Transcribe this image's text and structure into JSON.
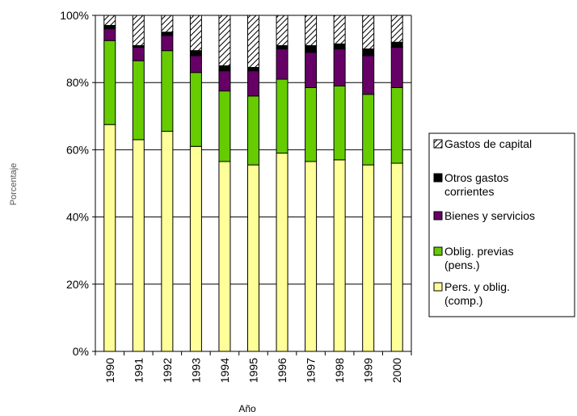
{
  "chart_data": {
    "type": "bar",
    "stacked": true,
    "percent": true,
    "categories": [
      "1990",
      "1991",
      "1992",
      "1993",
      "1994",
      "1995",
      "1996",
      "1997",
      "1998",
      "1999",
      "2000"
    ],
    "series": [
      {
        "name": "Pers. y oblig. (comp.)",
        "color": "#ffff99",
        "pattern": "solid",
        "values": [
          67.5,
          63,
          65.5,
          61,
          56.5,
          55.5,
          59,
          56.5,
          57,
          55.5,
          56
        ]
      },
      {
        "name": "Oblig. previas (pens.)",
        "color": "#66cc00",
        "pattern": "solid",
        "values": [
          25,
          23.5,
          24,
          22,
          21,
          20.5,
          22,
          22,
          22,
          21,
          22.5
        ]
      },
      {
        "name": "Bienes y servicios",
        "color": "#660066",
        "pattern": "solid",
        "values": [
          3.5,
          4,
          4.5,
          5,
          6,
          7.5,
          9,
          10.5,
          11,
          11.5,
          12
        ]
      },
      {
        "name": "Otros gastos corrientes",
        "color": "#000000",
        "pattern": "solid",
        "values": [
          1,
          0.5,
          1,
          1.5,
          1.5,
          1,
          1,
          2,
          1.5,
          2,
          1.5
        ]
      },
      {
        "name": "Gastos de capital",
        "color": "#ffffff",
        "pattern": "hatch",
        "values": [
          3,
          9,
          5,
          10.5,
          15,
          15.5,
          9,
          9,
          8.5,
          10,
          8
        ]
      }
    ],
    "xlabel": "Año",
    "ylabel": "Porcentaje",
    "yticks": [
      "0%",
      "20%",
      "40%",
      "60%",
      "80%",
      "100%"
    ],
    "ylim": [
      0,
      100
    ],
    "grid": true,
    "legend_position": "right",
    "legend_order": [
      "Gastos de capital",
      "Otros gastos corrientes",
      "Bienes y servicios",
      "Oblig. previas (pens.)",
      "Pers. y oblig. (comp.)"
    ]
  }
}
